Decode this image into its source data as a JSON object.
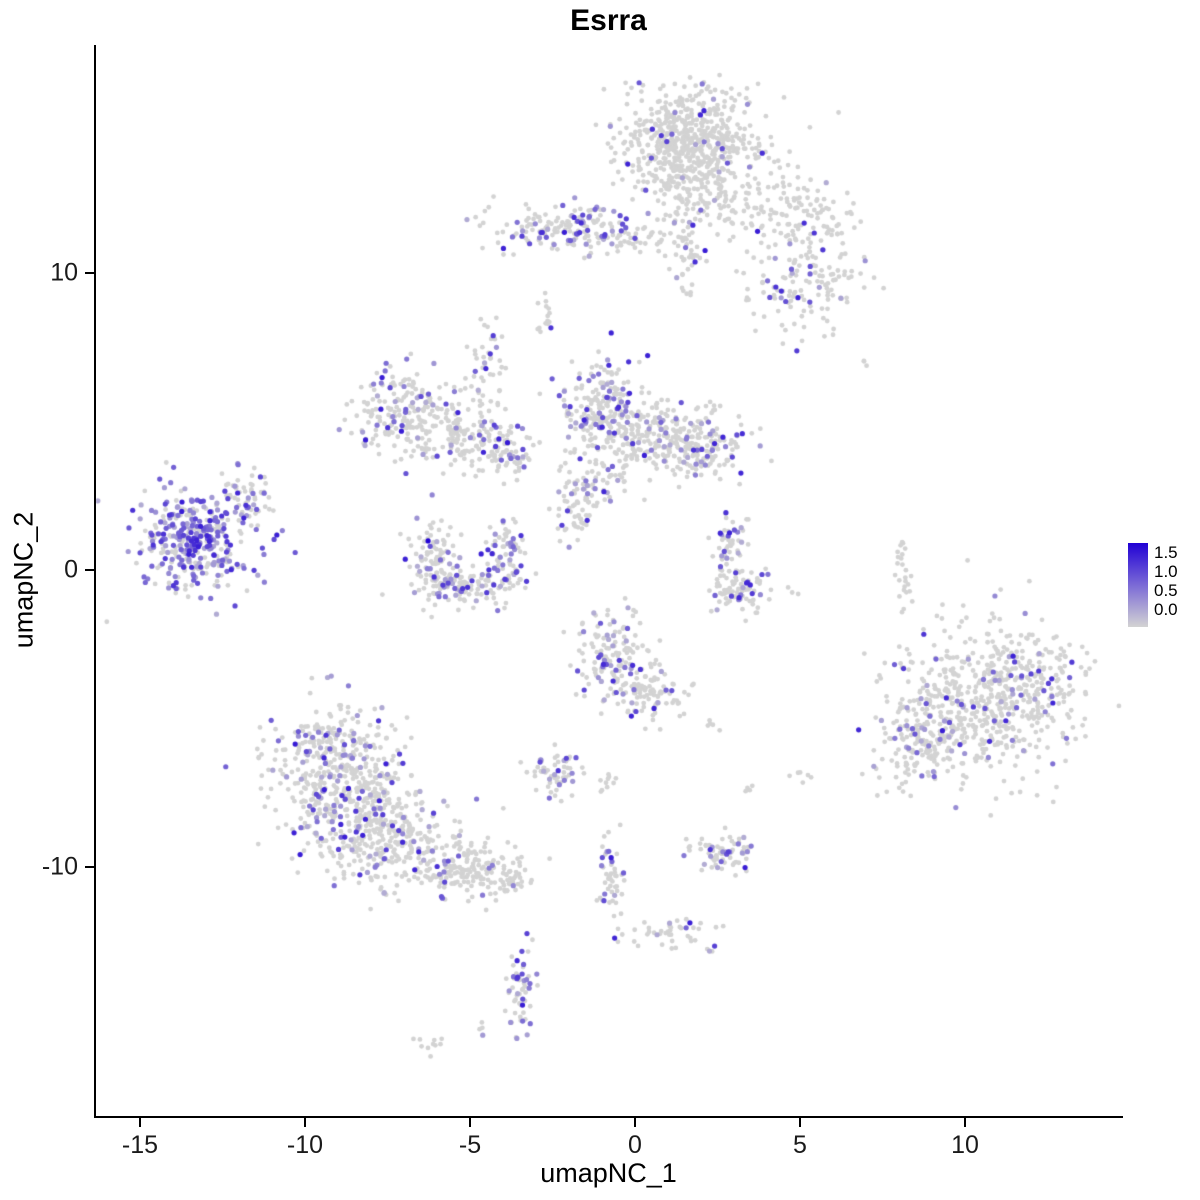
{
  "chart_data": {
    "type": "scatter",
    "title": "Esrra",
    "xlabel": "umapNC_1",
    "ylabel": "umapNC_2",
    "xlim": [
      -16.4,
      14.8
    ],
    "ylim": [
      -18.5,
      17.7
    ],
    "xticks": [
      "-15",
      "-10",
      "-5",
      "0",
      "5",
      "10"
    ],
    "xtick_values": [
      -15,
      -10,
      -5,
      0,
      5,
      10
    ],
    "yticks": [
      "10",
      "0",
      "-10"
    ],
    "ytick_values": [
      10,
      0,
      -10
    ],
    "grid": false,
    "point_color_low": "#D3D3D3",
    "point_color_high": "#2101D5",
    "value_range": [
      0.0,
      1.6
    ],
    "clusters": [
      {
        "cx": 1.67,
        "cy": 14.5,
        "sx": 1.05,
        "sy": 0.85,
        "n": 550,
        "f": 0.04
      },
      {
        "cx": 1.97,
        "cy": 12.7,
        "sx": 0.9,
        "sy": 0.7,
        "n": 150,
        "f": 0.05
      },
      {
        "cx": 4.7,
        "cy": 12.0,
        "sx": 1.05,
        "sy": 0.7,
        "n": 130,
        "f": 0.08
      },
      {
        "cx": 5.3,
        "cy": 9.6,
        "sx": 0.9,
        "sy": 0.85,
        "n": 140,
        "f": 0.18
      },
      {
        "cx": 1.5,
        "cy": 10.8,
        "sx": 0.25,
        "sy": 0.85,
        "n": 40,
        "f": 0.05
      },
      {
        "cx": -2.1,
        "cy": 11.5,
        "sx": 1.05,
        "sy": 0.4,
        "n": 160,
        "f": 0.3
      },
      {
        "cx": 0.15,
        "cy": 11.3,
        "sx": 0.8,
        "sy": 0.35,
        "n": 60,
        "f": 0.12
      },
      {
        "cx": -2.7,
        "cy": 8.5,
        "sx": 0.12,
        "sy": 0.35,
        "n": 15,
        "f": 0.3
      },
      {
        "cx": 6.9,
        "cy": 6.9,
        "sx": 0.1,
        "sy": 0.1,
        "n": 3,
        "f": 0
      },
      {
        "cx": -7.0,
        "cy": 5.4,
        "sx": 0.8,
        "sy": 0.75,
        "n": 180,
        "f": 0.2
      },
      {
        "cx": -5.45,
        "cy": 4.6,
        "sx": 0.9,
        "sy": 0.65,
        "n": 140,
        "f": 0.1
      },
      {
        "cx": -4.1,
        "cy": 3.9,
        "sx": 0.6,
        "sy": 0.5,
        "n": 80,
        "f": 0.1
      },
      {
        "cx": -4.4,
        "cy": 6.8,
        "sx": 0.25,
        "sy": 0.7,
        "n": 40,
        "f": 0.15
      },
      {
        "cx": -1.06,
        "cy": 5.4,
        "sx": 0.6,
        "sy": 0.85,
        "n": 200,
        "f": 0.25
      },
      {
        "cx": 0.45,
        "cy": 4.4,
        "sx": 0.9,
        "sy": 0.65,
        "n": 220,
        "f": 0.12
      },
      {
        "cx": 2.0,
        "cy": 4.2,
        "sx": 0.75,
        "sy": 0.6,
        "n": 150,
        "f": 0.2
      },
      {
        "cx": -1.5,
        "cy": 2.7,
        "sx": 0.45,
        "sy": 0.5,
        "n": 60,
        "f": 0.1
      },
      {
        "cx": -1.8,
        "cy": 1.7,
        "sx": 0.3,
        "sy": 0.4,
        "n": 30,
        "f": 0.1
      },
      {
        "cx": -13.3,
        "cy": 1.0,
        "sx": 0.9,
        "sy": 0.85,
        "n": 380,
        "f": 0.55
      },
      {
        "cx": -11.7,
        "cy": 2.5,
        "sx": 0.35,
        "sy": 0.5,
        "n": 50,
        "f": 0.3
      },
      {
        "cx": -6.1,
        "cy": 0.35,
        "sx": 0.35,
        "sy": 0.75,
        "n": 90,
        "f": 0.2
      },
      {
        "cx": -5.0,
        "cy": -0.5,
        "sx": 0.75,
        "sy": 0.35,
        "n": 120,
        "f": 0.3
      },
      {
        "cx": -3.9,
        "cy": 0.5,
        "sx": 0.3,
        "sy": 0.6,
        "n": 70,
        "f": 0.25
      },
      {
        "cx": 2.9,
        "cy": 0.85,
        "sx": 0.3,
        "sy": 0.5,
        "n": 50,
        "f": 0.3
      },
      {
        "cx": 3.3,
        "cy": -0.7,
        "sx": 0.6,
        "sy": 0.4,
        "n": 90,
        "f": 0.2
      },
      {
        "cx": 8.0,
        "cy": 0.6,
        "sx": 0.1,
        "sy": 0.35,
        "n": 12,
        "f": 0
      },
      {
        "cx": 8.2,
        "cy": -0.5,
        "sx": 0.1,
        "sy": 0.35,
        "n": 12,
        "f": 0
      },
      {
        "cx": -0.6,
        "cy": -3.0,
        "sx": 0.55,
        "sy": 0.85,
        "n": 150,
        "f": 0.2
      },
      {
        "cx": 0.45,
        "cy": -4.1,
        "sx": 0.55,
        "sy": 0.5,
        "n": 80,
        "f": 0.12
      },
      {
        "cx": 2.3,
        "cy": -5.1,
        "sx": 0.15,
        "sy": 0.15,
        "n": 5,
        "f": 0
      },
      {
        "cx": 10.3,
        "cy": -4.4,
        "sx": 1.35,
        "sy": 1.35,
        "n": 500,
        "f": 0.12
      },
      {
        "cx": 12.0,
        "cy": -3.7,
        "sx": 0.75,
        "sy": 0.85,
        "n": 150,
        "f": 0.1
      },
      {
        "cx": 8.6,
        "cy": -5.7,
        "sx": 0.6,
        "sy": 0.85,
        "n": 130,
        "f": 0.12
      },
      {
        "cx": -2.4,
        "cy": -6.8,
        "sx": 0.45,
        "sy": 0.4,
        "n": 60,
        "f": 0.25
      },
      {
        "cx": -0.85,
        "cy": -7.1,
        "sx": 0.15,
        "sy": 0.25,
        "n": 10,
        "f": 0.1
      },
      {
        "cx": 5.0,
        "cy": -6.9,
        "sx": 0.15,
        "sy": 0.15,
        "n": 6,
        "f": 0.3
      },
      {
        "cx": 3.3,
        "cy": -7.4,
        "sx": 0.12,
        "sy": 0.12,
        "n": 4,
        "f": 0
      },
      {
        "cx": -8.8,
        "cy": -7.4,
        "sx": 1.05,
        "sy": 1.2,
        "n": 450,
        "f": 0.18
      },
      {
        "cx": -7.4,
        "cy": -9.1,
        "sx": 1.05,
        "sy": 0.85,
        "n": 250,
        "f": 0.15
      },
      {
        "cx": -5.3,
        "cy": -10.0,
        "sx": 0.9,
        "sy": 0.5,
        "n": 150,
        "f": 0.1
      },
      {
        "cx": -3.9,
        "cy": -10.5,
        "sx": 0.35,
        "sy": 0.3,
        "n": 40,
        "f": 0.1
      },
      {
        "cx": -9.5,
        "cy": -5.7,
        "sx": 0.75,
        "sy": 0.5,
        "n": 80,
        "f": 0.15
      },
      {
        "cx": 2.6,
        "cy": -9.5,
        "sx": 0.55,
        "sy": 0.3,
        "n": 70,
        "f": 0.35
      },
      {
        "cx": -0.7,
        "cy": -10.6,
        "sx": 0.18,
        "sy": 0.95,
        "n": 50,
        "f": 0.25
      },
      {
        "cx": 0.9,
        "cy": -12.2,
        "sx": 0.75,
        "sy": 0.25,
        "n": 40,
        "f": 0.1
      },
      {
        "cx": 2.4,
        "cy": -12.8,
        "sx": 0.1,
        "sy": 0.1,
        "n": 4,
        "f": 0.3
      },
      {
        "cx": -3.5,
        "cy": -14.2,
        "sx": 0.2,
        "sy": 0.85,
        "n": 60,
        "f": 0.35
      },
      {
        "cx": -4.7,
        "cy": -15.5,
        "sx": 0.1,
        "sy": 0.1,
        "n": 4,
        "f": 0.3
      },
      {
        "cx": -6.1,
        "cy": -16.0,
        "sx": 0.25,
        "sy": 0.15,
        "n": 10,
        "f": 0
      }
    ],
    "highlight_points": [
      {
        "x": -6.27,
        "y": 0.98,
        "value": 1.6
      }
    ]
  },
  "legend": {
    "labels": [
      "1.5",
      "1.0",
      "0.5",
      "0.0"
    ],
    "gradient": [
      "#2101D5",
      "#7B6AD6",
      "#D3D3D3"
    ]
  }
}
